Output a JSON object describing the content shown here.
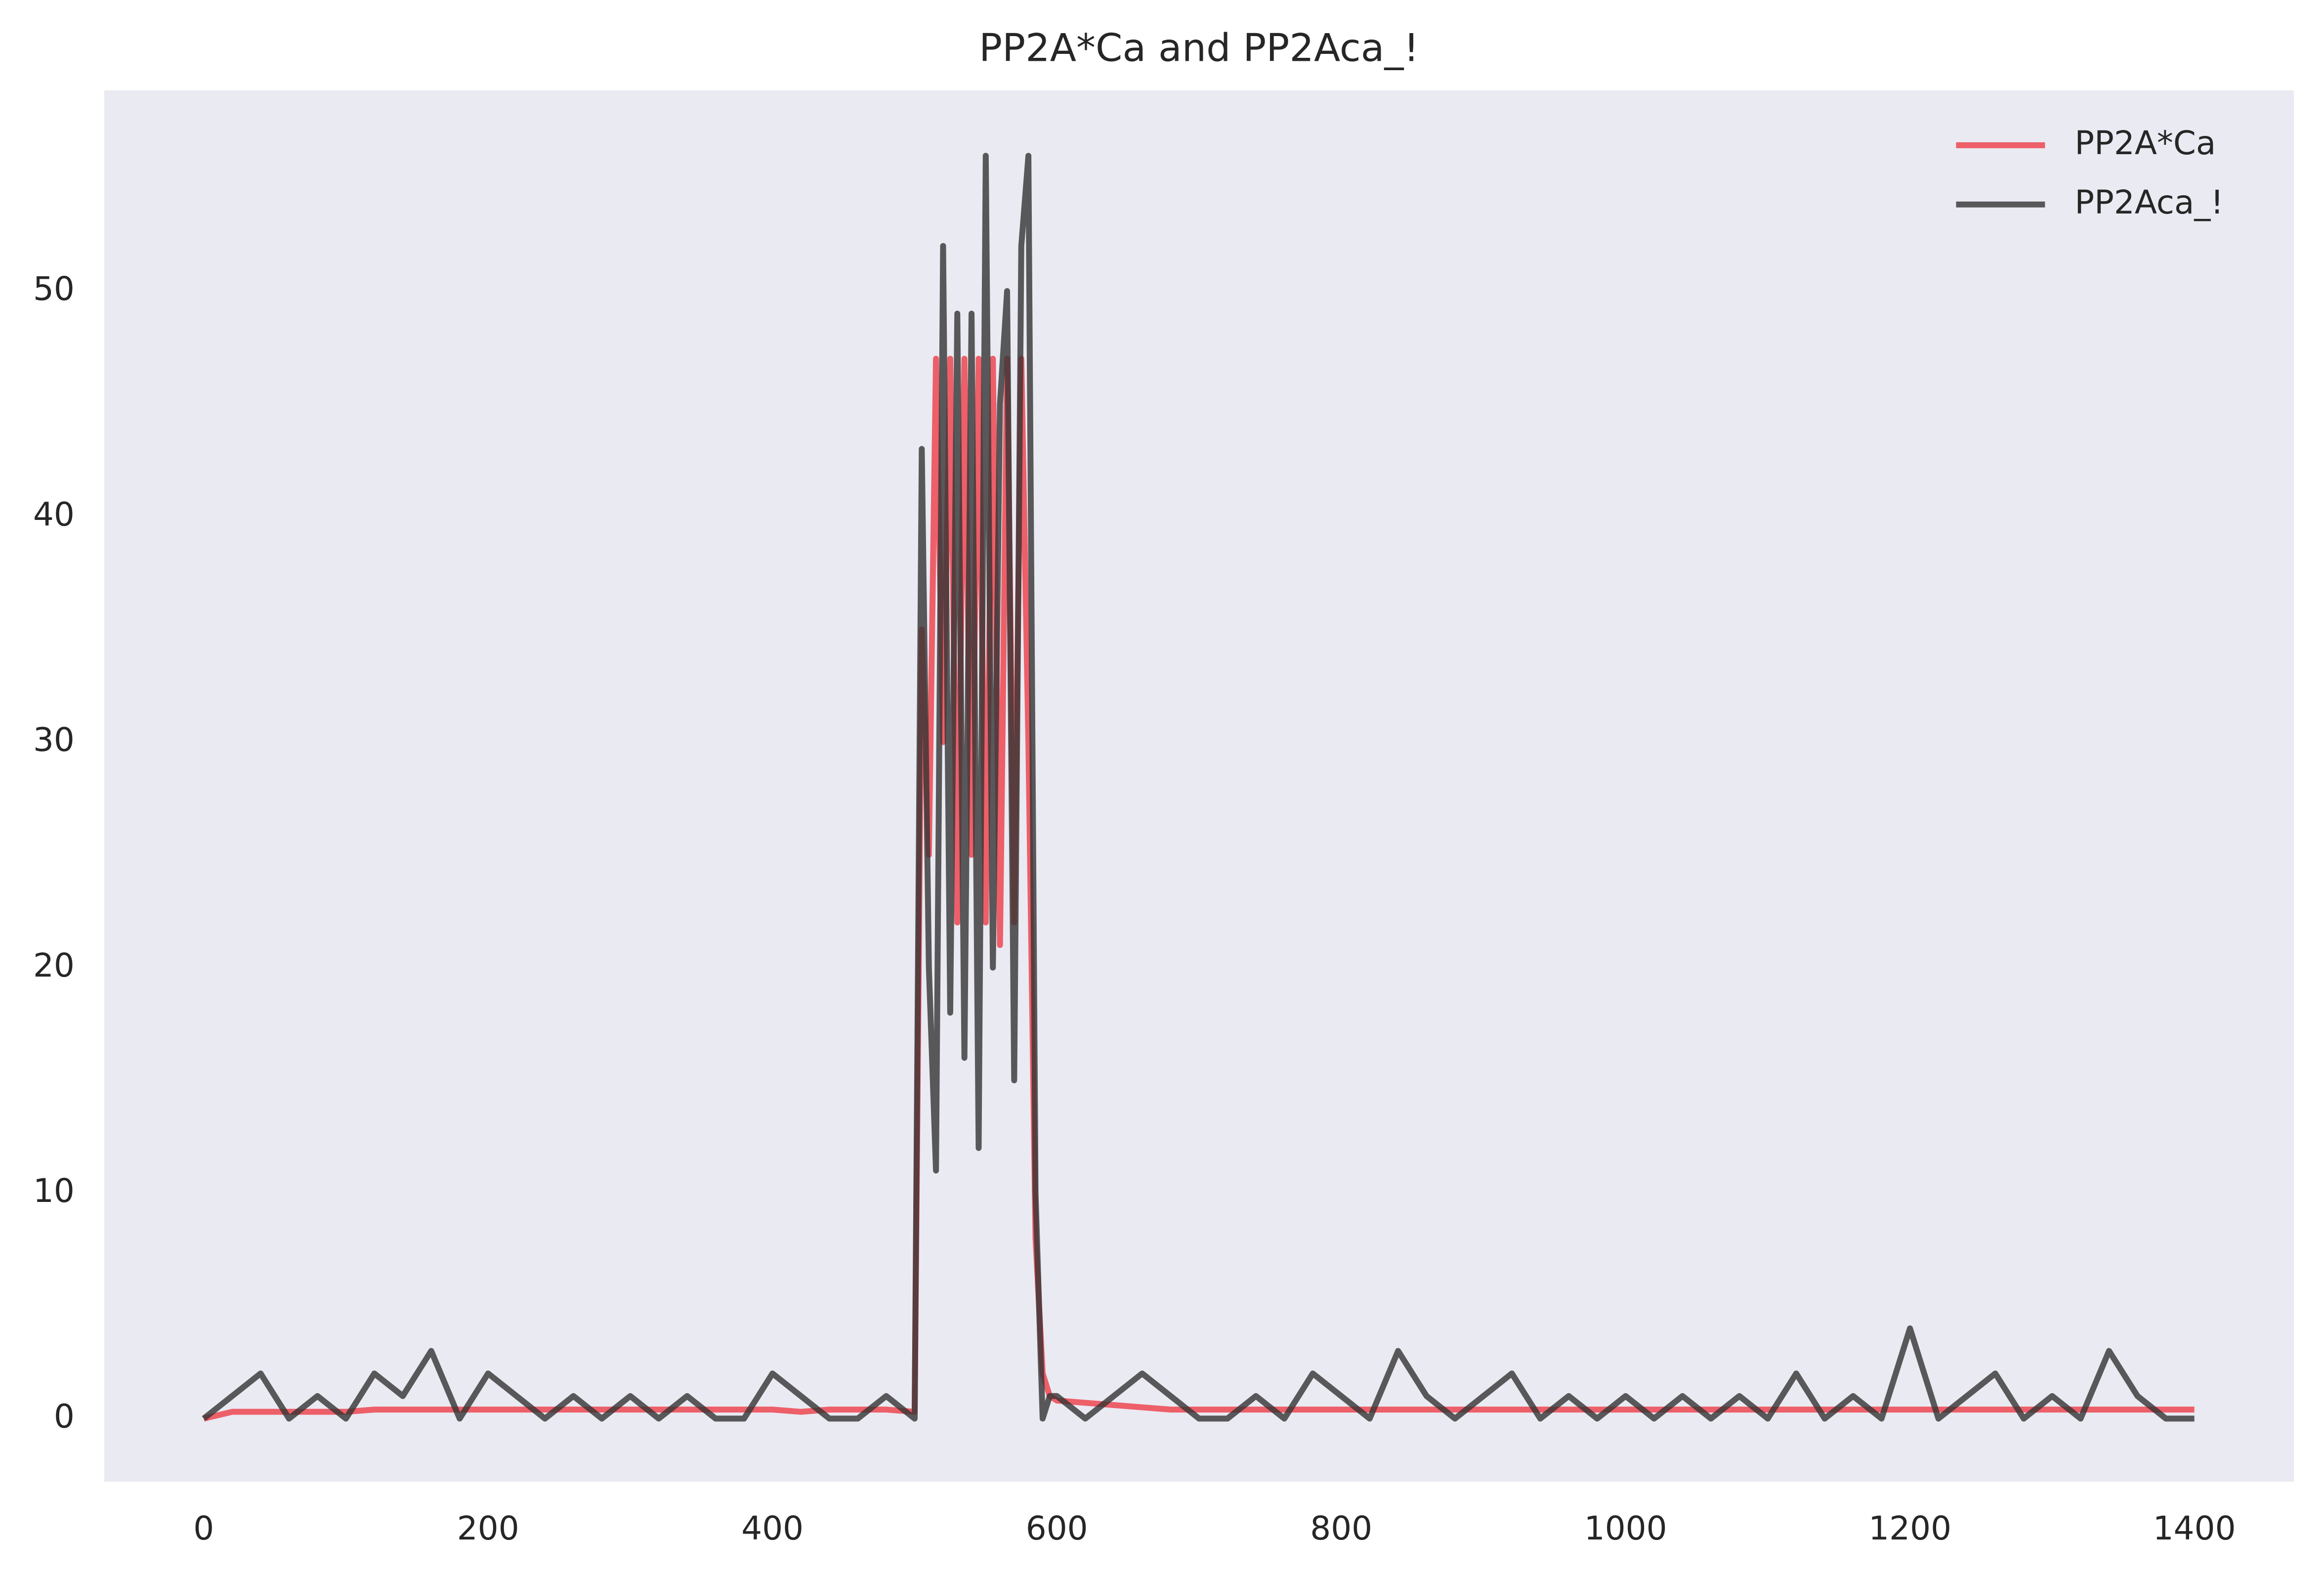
{
  "chart_data": {
    "type": "line",
    "title": "PP2A*Ca and PP2Aca_!",
    "x": [
      0,
      20,
      40,
      60,
      80,
      100,
      120,
      140,
      160,
      180,
      200,
      220,
      240,
      260,
      280,
      300,
      320,
      340,
      360,
      380,
      400,
      420,
      440,
      460,
      480,
      500,
      505,
      510,
      515,
      520,
      525,
      530,
      535,
      540,
      545,
      550,
      555,
      560,
      565,
      570,
      575,
      580,
      585,
      590,
      595,
      600,
      620,
      640,
      660,
      680,
      700,
      720,
      740,
      760,
      780,
      800,
      820,
      840,
      860,
      880,
      900,
      920,
      940,
      960,
      980,
      1000,
      1020,
      1040,
      1060,
      1080,
      1100,
      1120,
      1140,
      1160,
      1180,
      1200,
      1220,
      1240,
      1260,
      1280,
      1300,
      1320,
      1340,
      1360,
      1380,
      1400
    ],
    "series": [
      {
        "name": "PP2A*Ca",
        "color": "#ee3c46",
        "values": [
          0,
          0.3,
          0.3,
          0.3,
          0.3,
          0.3,
          0.4,
          0.4,
          0.4,
          0.4,
          0.4,
          0.4,
          0.4,
          0.4,
          0.4,
          0.4,
          0.4,
          0.4,
          0.4,
          0.4,
          0.4,
          0.3,
          0.4,
          0.4,
          0.4,
          0.3,
          35,
          25,
          47,
          30,
          47,
          22,
          47,
          25,
          47,
          22,
          47,
          21,
          47,
          22,
          47,
          30,
          8,
          2,
          1,
          0.8,
          0.7,
          0.6,
          0.5,
          0.4,
          0.4,
          0.4,
          0.4,
          0.4,
          0.4,
          0.4,
          0.4,
          0.4,
          0.4,
          0.4,
          0.4,
          0.4,
          0.4,
          0.4,
          0.4,
          0.4,
          0.4,
          0.4,
          0.4,
          0.4,
          0.4,
          0.4,
          0.4,
          0.4,
          0.4,
          0.4,
          0.4,
          0.4,
          0.4,
          0.4,
          0.4,
          0.4,
          0.4,
          0.4,
          0.4,
          0.4
        ]
      },
      {
        "name": "PP2Aca_!",
        "color": "#333333",
        "values": [
          0,
          1,
          2,
          0,
          1,
          0,
          2,
          1,
          3,
          0,
          2,
          1,
          0,
          1,
          0,
          1,
          0,
          1,
          0,
          0,
          2,
          1,
          0,
          0,
          1,
          0,
          43,
          20,
          11,
          52,
          18,
          49,
          16,
          49,
          12,
          56,
          20,
          45,
          50,
          15,
          52,
          56,
          10,
          0,
          1,
          1,
          0,
          1,
          2,
          1,
          0,
          0,
          1,
          0,
          2,
          1,
          0,
          3,
          1,
          0,
          1,
          2,
          0,
          1,
          0,
          1,
          0,
          1,
          0,
          1,
          0,
          2,
          0,
          1,
          0,
          4,
          0,
          1,
          2,
          0,
          1,
          0,
          3,
          1,
          0,
          0
        ]
      }
    ],
    "xlim": [
      -70,
      1470
    ],
    "xticks": [
      0,
      200,
      400,
      600,
      800,
      1000,
      1200,
      1400
    ],
    "ylim": [
      -2.8,
      58.9
    ],
    "yticks": [
      0,
      10,
      20,
      30,
      40,
      50
    ],
    "grid": false,
    "legend": "upper right"
  }
}
